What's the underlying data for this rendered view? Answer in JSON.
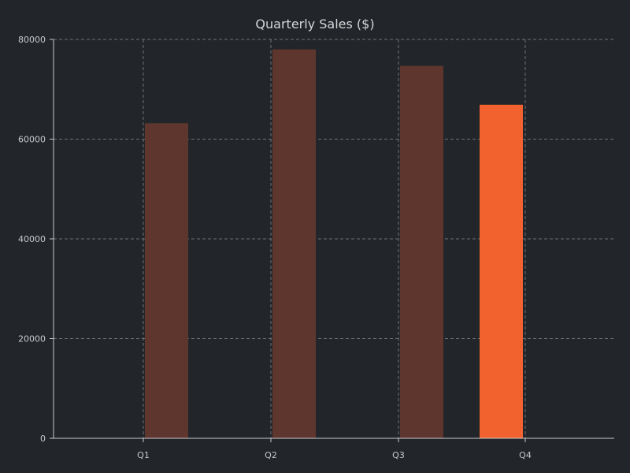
{
  "chart_data": {
    "type": "bar",
    "title": "Quarterly Sales ($)",
    "xlabel": "",
    "ylabel": "",
    "categories": [
      "Q1",
      "Q2",
      "Q3",
      "Q4"
    ],
    "values": [
      63200,
      78000,
      74700,
      66900
    ],
    "ylim": [
      0,
      80000
    ],
    "yticks": [
      0,
      20000,
      40000,
      60000,
      80000
    ],
    "ytick_labels": [
      "0",
      "20000",
      "40000",
      "60000",
      "80000"
    ],
    "highlight_index": 3,
    "grid": true,
    "colors": {
      "background": "#222529",
      "bar": "#5e362d",
      "highlight": "#f2622e",
      "grid": "#6e7175",
      "axis": "#c9cbce",
      "text": "#c7c9cc"
    }
  }
}
